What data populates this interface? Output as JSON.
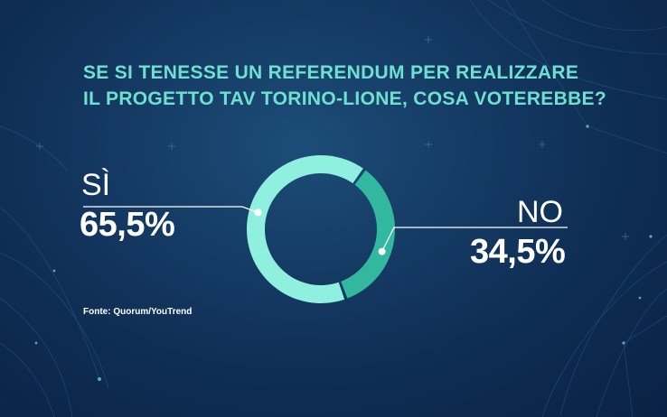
{
  "title_lines": [
    "SE SI TENESSE UN REFERENDUM PER REALIZZARE",
    "IL PROGETTO TAV TORINO-LIONE, COSA VOTEREBBE?"
  ],
  "source": "Fonte: Quorum/YouTrend",
  "colors": {
    "background": "#0e2c52",
    "title": "#6fe0d0",
    "si_slice": "#8ff0df",
    "no_slice": "#33b8a0",
    "text": "#ffffff"
  },
  "chart_data": {
    "type": "pie",
    "style": "donut",
    "title": "SE SI TENESSE UN REFERENDUM PER REALIZZARE IL PROGETTO TAV TORINO-LIONE, COSA VOTEREBBE?",
    "slices": [
      {
        "label": "SÌ",
        "value": 65.5,
        "value_label": "65,5%",
        "color": "#8ff0df"
      },
      {
        "label": "NO",
        "value": 34.5,
        "value_label": "34,5%",
        "color": "#33b8a0"
      }
    ]
  }
}
